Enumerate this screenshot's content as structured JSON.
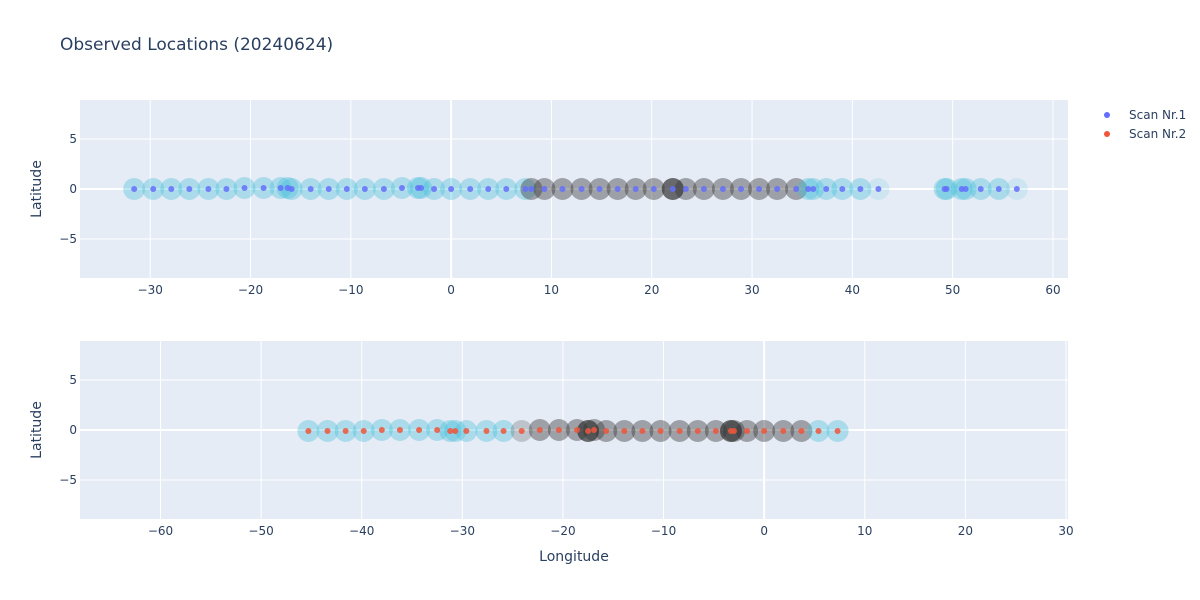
{
  "chart_data": {
    "type": "scatter",
    "title": "Observed Locations (20240624)",
    "legend": {
      "placement": "top-right",
      "entries": [
        "Scan Nr.1",
        "Scan Nr.2"
      ]
    },
    "colors": {
      "plot_bg": "#e5ecf6",
      "grid": "#ffffff",
      "scan1_point": "#636efa",
      "scan2_point": "#ef553b",
      "halo_light": "#40bcd8",
      "halo_dark": "#323232",
      "text": "#2a3f5f"
    },
    "subplots": [
      {
        "name": "Scan Nr.1",
        "xlabel": "",
        "ylabel": "Latitude",
        "xlim": [
          -37,
          61.5
        ],
        "ylim": [
          -8.9,
          8.9
        ],
        "x_ticks": [
          -30,
          -20,
          -10,
          0,
          10,
          20,
          30,
          40,
          50,
          60
        ],
        "y_ticks": [
          -5,
          0,
          5
        ],
        "grid": true,
        "series": [
          {
            "name": "Scan Nr.1",
            "x": [
              -31.6,
              -29.7,
              -27.9,
              -26.1,
              -24.2,
              -22.4,
              -20.6,
              -18.7,
              -17.0,
              -16.3,
              -15.9,
              -14.0,
              -12.2,
              -10.4,
              -8.6,
              -6.7,
              -4.9,
              -3.3,
              -3.0,
              -1.7,
              0.0,
              1.9,
              3.7,
              5.5,
              7.4,
              8.0,
              9.3,
              11.1,
              13.0,
              14.8,
              16.6,
              18.4,
              20.2,
              22.1,
              23.4,
              25.2,
              27.1,
              28.9,
              30.7,
              32.5,
              34.4,
              35.6,
              36.1,
              37.4,
              39.0,
              40.8,
              42.6,
              49.2,
              49.4,
              50.9,
              51.3,
              52.8,
              54.6,
              56.4
            ],
            "y": [
              0.0,
              0.0,
              0.0,
              0.0,
              0.0,
              0.0,
              0.1,
              0.1,
              0.1,
              0.1,
              0.0,
              0.0,
              0.0,
              0.0,
              0.0,
              0.0,
              0.1,
              0.1,
              0.1,
              0.0,
              0.0,
              0.0,
              0.0,
              0.0,
              0.0,
              0.0,
              0.0,
              0.0,
              0.0,
              0.0,
              0.0,
              0.0,
              0.0,
              0.0,
              0.0,
              0.0,
              0.0,
              0.0,
              0.0,
              0.0,
              0.0,
              0.0,
              0.0,
              0.0,
              0.0,
              0.0,
              0.0,
              0.0,
              0.0,
              0.0,
              0.0,
              0.0,
              0.0,
              0.0
            ],
            "halo": [
              "l",
              "l",
              "l",
              "l",
              "l",
              "l",
              "l",
              "l",
              "l",
              "l",
              "l",
              "l",
              "l",
              "l",
              "l",
              "l",
              "l",
              "l",
              "l",
              "l",
              "l",
              "l",
              "l",
              "l",
              "l",
              "d",
              "d",
              "d",
              "d",
              "d",
              "d",
              "d",
              "d",
              "D",
              "d",
              "d",
              "d",
              "d",
              "d",
              "d",
              "d",
              "l",
              "l",
              "l",
              "l",
              "l",
              "f",
              "l",
              "l",
              "l",
              "l",
              "l",
              "l",
              "f"
            ]
          }
        ]
      },
      {
        "name": "Scan Nr.2",
        "xlabel": "Longitude",
        "ylabel": "Latitude",
        "xlim": [
          -68,
          30.2
        ],
        "ylim": [
          -8.9,
          8.9
        ],
        "x_ticks": [
          -60,
          -50,
          -40,
          -30,
          -20,
          -10,
          0,
          10,
          20,
          30
        ],
        "y_ticks": [
          -5,
          0,
          5
        ],
        "grid": true,
        "series": [
          {
            "name": "Scan Nr.2",
            "x": [
              -45.3,
              -43.4,
              -41.6,
              -39.8,
              -38.0,
              -36.2,
              -34.3,
              -32.5,
              -31.2,
              -30.7,
              -29.6,
              -27.6,
              -25.9,
              -24.1,
              -22.3,
              -20.4,
              -18.6,
              -17.5,
              -16.9,
              -15.7,
              -13.9,
              -12.1,
              -10.3,
              -8.4,
              -6.6,
              -4.8,
              -3.3,
              -3.0,
              -1.7,
              0.0,
              1.9,
              3.7,
              5.4,
              7.3
            ],
            "y": [
              -0.1,
              -0.1,
              -0.1,
              -0.1,
              0.0,
              0.0,
              0.0,
              0.0,
              -0.1,
              -0.1,
              -0.1,
              -0.1,
              -0.1,
              -0.1,
              0.0,
              0.0,
              0.0,
              -0.1,
              0.0,
              -0.1,
              -0.1,
              -0.1,
              -0.1,
              -0.1,
              -0.1,
              -0.1,
              -0.1,
              -0.1,
              -0.1,
              -0.1,
              -0.1,
              -0.1,
              -0.1,
              -0.1
            ],
            "halo": [
              "l",
              "l",
              "l",
              "l",
              "l",
              "l",
              "l",
              "l",
              "l",
              "l",
              "l",
              "l",
              "l",
              "m",
              "d",
              "d",
              "d",
              "D",
              "d",
              "d",
              "d",
              "d",
              "d",
              "d",
              "d",
              "d",
              "D",
              "d",
              "d",
              "d",
              "d",
              "d",
              "l",
              "l"
            ]
          }
        ]
      }
    ]
  }
}
